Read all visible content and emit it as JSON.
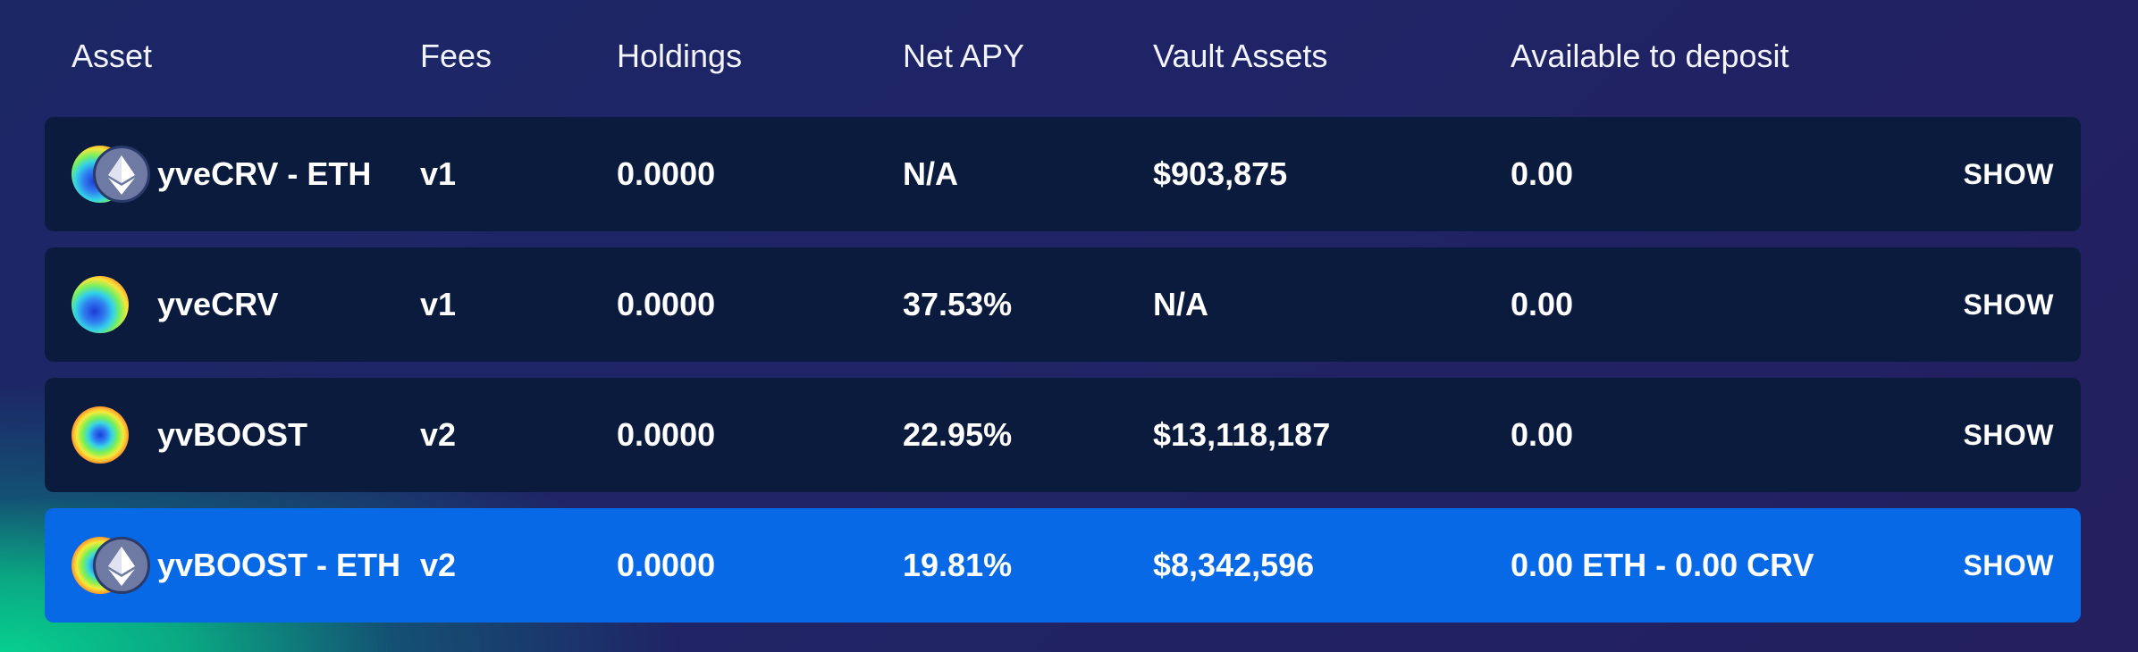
{
  "header": {
    "asset": "Asset",
    "fees": "Fees",
    "holdings": "Holdings",
    "net_apy": "Net APY",
    "vault_assets": "Vault Assets",
    "available": "Available to deposit"
  },
  "colors": {
    "row_bg": "#0b1b3e",
    "active_row_bg": "#0869e6",
    "eth_icon_bg": "#6e7aa3"
  },
  "rows": [
    {
      "name": "yveCRV - ETH",
      "fees": "v1",
      "holdings": "0.0000",
      "net_apy": "N/A",
      "vault_assets": "$903,875",
      "available": "0.00",
      "action": "SHOW",
      "icons": [
        "crv-icon",
        "eth-icon"
      ],
      "active": false
    },
    {
      "name": "yveCRV",
      "fees": "v1",
      "holdings": "0.0000",
      "net_apy": "37.53%",
      "vault_assets": "N/A",
      "available": "0.00",
      "action": "SHOW",
      "icons": [
        "crv-icon"
      ],
      "active": false
    },
    {
      "name": "yvBOOST",
      "fees": "v2",
      "holdings": "0.0000",
      "net_apy": "22.95%",
      "vault_assets": "$13,118,187",
      "available": "0.00",
      "action": "SHOW",
      "icons": [
        "boost-icon"
      ],
      "active": false
    },
    {
      "name": "yvBOOST - ETH",
      "fees": "v2",
      "holdings": "0.0000",
      "net_apy": "19.81%",
      "vault_assets": "$8,342,596",
      "available": "0.00 ETH - 0.00 CRV",
      "action": "SHOW",
      "icons": [
        "boost-icon",
        "eth-icon"
      ],
      "active": true
    }
  ]
}
